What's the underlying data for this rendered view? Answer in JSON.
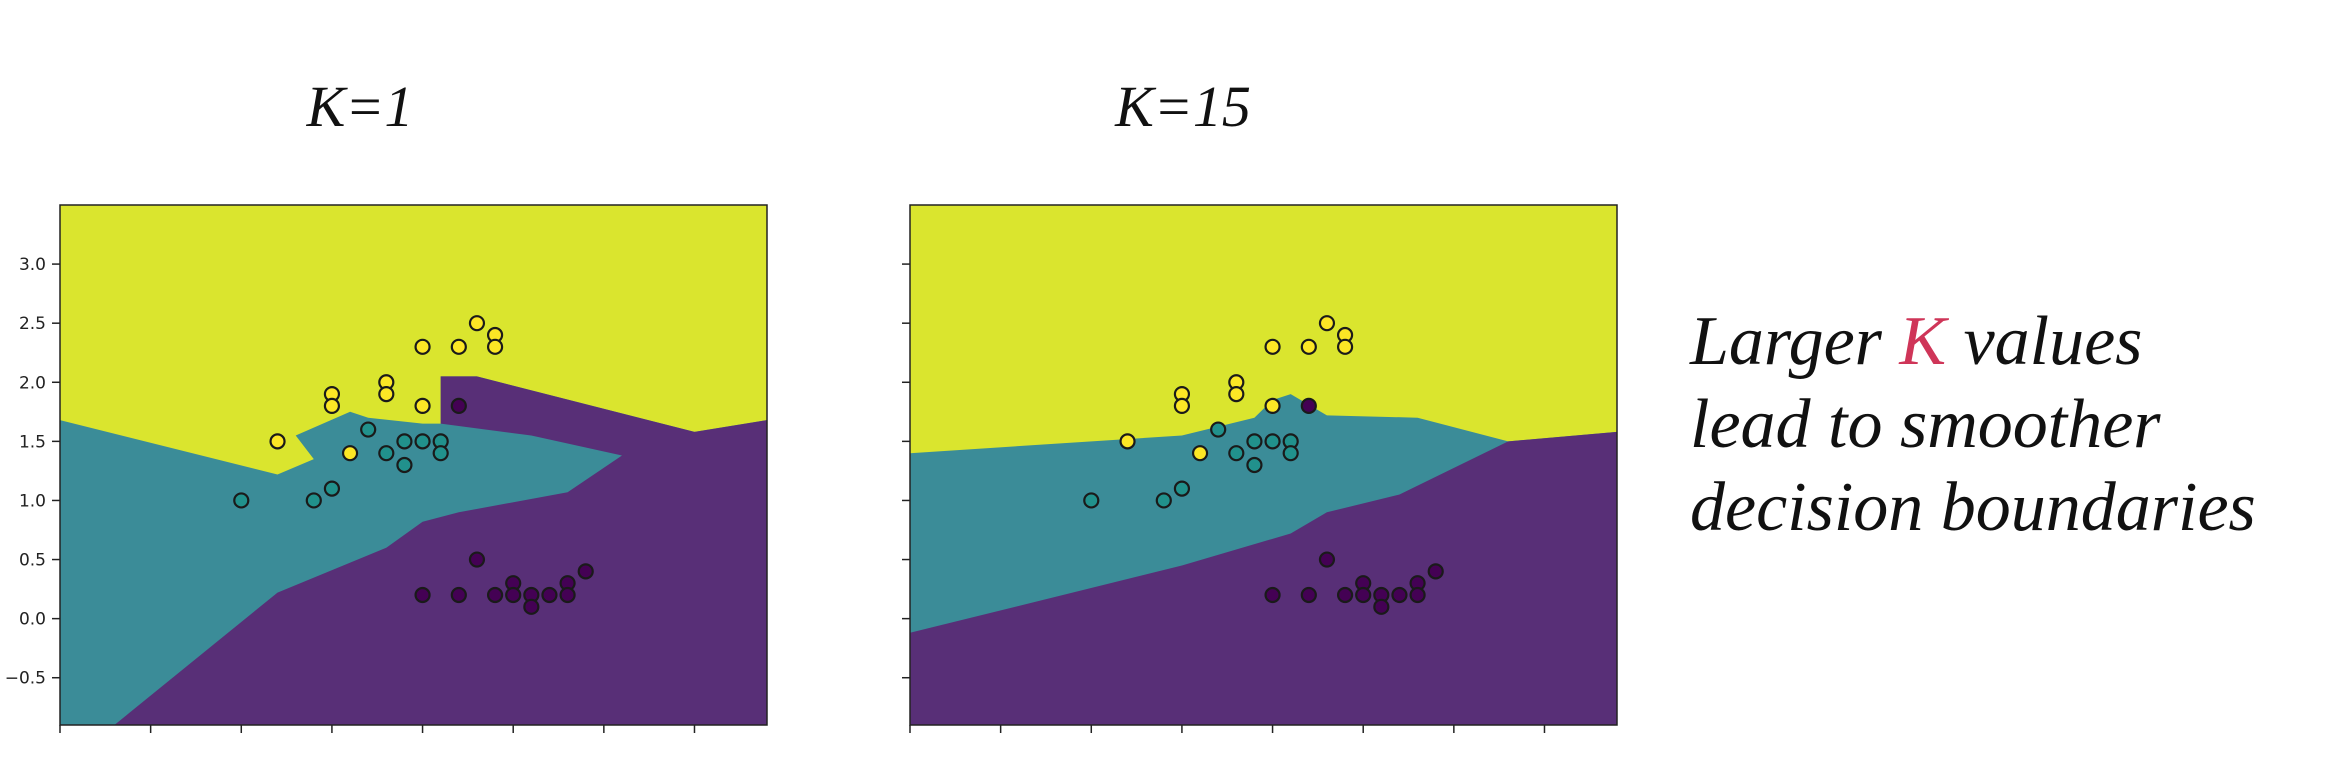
{
  "colors": {
    "region_class0": "#582f77",
    "region_class1": "#3b8c98",
    "region_class2": "#dae52e",
    "point_class0": "#440154",
    "point_class1": "#21918c",
    "point_class2": "#fde725",
    "highlight": "#cf3558"
  },
  "caption": {
    "line1_prefix": "Larger ",
    "line1_k": "K",
    "line1_suffix": " values",
    "line2": "lead to smoother",
    "line3": "decision boundaries"
  },
  "chart_data": [
    {
      "type": "scatter",
      "title": "K=1",
      "xlabel": "",
      "ylabel": "",
      "xlim": [
        1.0,
        4.9
      ],
      "ylim": [
        -0.9,
        3.5
      ],
      "yticks": [
        "3.0",
        "2.5",
        "2.0",
        "1.5",
        "1.0",
        "0.5",
        "0.0",
        "−0.5"
      ],
      "grid": false,
      "points": [
        {
          "x": 2.0,
          "y": 1.0,
          "class": 1
        },
        {
          "x": 2.4,
          "y": 1.0,
          "class": 1
        },
        {
          "x": 2.5,
          "y": 1.1,
          "class": 1
        },
        {
          "x": 2.7,
          "y": 1.6,
          "class": 1
        },
        {
          "x": 2.8,
          "y": 1.4,
          "class": 1
        },
        {
          "x": 2.9,
          "y": 1.5,
          "class": 1
        },
        {
          "x": 2.9,
          "y": 1.3,
          "class": 1
        },
        {
          "x": 3.0,
          "y": 1.5,
          "class": 1
        },
        {
          "x": 3.1,
          "y": 1.5,
          "class": 1
        },
        {
          "x": 3.1,
          "y": 1.4,
          "class": 1
        },
        {
          "x": 2.2,
          "y": 1.5,
          "class": 2
        },
        {
          "x": 2.5,
          "y": 1.9,
          "class": 2
        },
        {
          "x": 2.5,
          "y": 1.8,
          "class": 2
        },
        {
          "x": 2.6,
          "y": 1.4,
          "class": 2
        },
        {
          "x": 2.8,
          "y": 2.0,
          "class": 2
        },
        {
          "x": 2.8,
          "y": 1.9,
          "class": 2
        },
        {
          "x": 3.0,
          "y": 2.3,
          "class": 2
        },
        {
          "x": 3.0,
          "y": 1.8,
          "class": 2
        },
        {
          "x": 3.2,
          "y": 2.3,
          "class": 2
        },
        {
          "x": 3.3,
          "y": 2.5,
          "class": 2
        },
        {
          "x": 3.4,
          "y": 2.4,
          "class": 2
        },
        {
          "x": 3.4,
          "y": 2.3,
          "class": 2
        },
        {
          "x": 3.2,
          "y": 1.8,
          "class": 0
        },
        {
          "x": 3.3,
          "y": 0.5,
          "class": 0
        },
        {
          "x": 3.0,
          "y": 0.2,
          "class": 0
        },
        {
          "x": 3.2,
          "y": 0.2,
          "class": 0
        },
        {
          "x": 3.4,
          "y": 0.2,
          "class": 0
        },
        {
          "x": 3.5,
          "y": 0.3,
          "class": 0
        },
        {
          "x": 3.5,
          "y": 0.2,
          "class": 0
        },
        {
          "x": 3.6,
          "y": 0.2,
          "class": 0
        },
        {
          "x": 3.6,
          "y": 0.1,
          "class": 0
        },
        {
          "x": 3.7,
          "y": 0.2,
          "class": 0
        },
        {
          "x": 3.8,
          "y": 0.3,
          "class": 0
        },
        {
          "x": 3.8,
          "y": 0.2,
          "class": 0
        },
        {
          "x": 3.9,
          "y": 0.4,
          "class": 0
        }
      ],
      "regions": {
        "class1": [
          [
            1.0,
            1.68
          ],
          [
            2.2,
            1.22
          ],
          [
            2.4,
            1.35
          ],
          [
            2.3,
            1.55
          ],
          [
            2.6,
            1.75
          ],
          [
            2.7,
            1.7
          ],
          [
            3.0,
            1.65
          ],
          [
            3.1,
            1.65
          ],
          [
            3.1,
            2.05
          ],
          [
            3.3,
            2.05
          ],
          [
            4.5,
            1.58
          ],
          [
            4.9,
            1.68
          ],
          [
            4.9,
            -0.9
          ],
          [
            1.0,
            -0.9
          ]
        ],
        "class0": [
          [
            1.3,
            -0.9
          ],
          [
            2.2,
            0.22
          ],
          [
            2.8,
            0.6
          ],
          [
            3.0,
            0.82
          ],
          [
            3.2,
            0.9
          ],
          [
            3.8,
            1.07
          ],
          [
            4.1,
            1.38
          ],
          [
            3.6,
            1.55
          ],
          [
            3.1,
            1.65
          ],
          [
            3.1,
            2.05
          ],
          [
            3.3,
            2.05
          ],
          [
            4.5,
            1.58
          ],
          [
            4.9,
            1.68
          ],
          [
            4.9,
            -0.9
          ]
        ]
      }
    },
    {
      "type": "scatter",
      "title": "K=15",
      "xlabel": "",
      "ylabel": "",
      "xlim": [
        1.0,
        4.9
      ],
      "ylim": [
        -0.9,
        3.5
      ],
      "grid": false,
      "points": [
        {
          "x": 2.0,
          "y": 1.0,
          "class": 1
        },
        {
          "x": 2.4,
          "y": 1.0,
          "class": 1
        },
        {
          "x": 2.5,
          "y": 1.1,
          "class": 1
        },
        {
          "x": 2.7,
          "y": 1.6,
          "class": 1
        },
        {
          "x": 2.8,
          "y": 1.4,
          "class": 1
        },
        {
          "x": 2.9,
          "y": 1.5,
          "class": 1
        },
        {
          "x": 2.9,
          "y": 1.3,
          "class": 1
        },
        {
          "x": 3.0,
          "y": 1.5,
          "class": 1
        },
        {
          "x": 3.1,
          "y": 1.5,
          "class": 1
        },
        {
          "x": 3.1,
          "y": 1.4,
          "class": 1
        },
        {
          "x": 2.2,
          "y": 1.5,
          "class": 2
        },
        {
          "x": 2.5,
          "y": 1.9,
          "class": 2
        },
        {
          "x": 2.5,
          "y": 1.8,
          "class": 2
        },
        {
          "x": 2.6,
          "y": 1.4,
          "class": 2
        },
        {
          "x": 2.8,
          "y": 2.0,
          "class": 2
        },
        {
          "x": 2.8,
          "y": 1.9,
          "class": 2
        },
        {
          "x": 3.0,
          "y": 2.3,
          "class": 2
        },
        {
          "x": 3.0,
          "y": 1.8,
          "class": 2
        },
        {
          "x": 3.2,
          "y": 2.3,
          "class": 2
        },
        {
          "x": 3.3,
          "y": 2.5,
          "class": 2
        },
        {
          "x": 3.4,
          "y": 2.4,
          "class": 2
        },
        {
          "x": 3.4,
          "y": 2.3,
          "class": 2
        },
        {
          "x": 3.2,
          "y": 1.8,
          "class": 0
        },
        {
          "x": 3.3,
          "y": 0.5,
          "class": 0
        },
        {
          "x": 3.0,
          "y": 0.2,
          "class": 0
        },
        {
          "x": 3.2,
          "y": 0.2,
          "class": 0
        },
        {
          "x": 3.4,
          "y": 0.2,
          "class": 0
        },
        {
          "x": 3.5,
          "y": 0.3,
          "class": 0
        },
        {
          "x": 3.5,
          "y": 0.2,
          "class": 0
        },
        {
          "x": 3.6,
          "y": 0.2,
          "class": 0
        },
        {
          "x": 3.6,
          "y": 0.1,
          "class": 0
        },
        {
          "x": 3.7,
          "y": 0.2,
          "class": 0
        },
        {
          "x": 3.8,
          "y": 0.3,
          "class": 0
        },
        {
          "x": 3.8,
          "y": 0.2,
          "class": 0
        },
        {
          "x": 3.9,
          "y": 0.4,
          "class": 0
        }
      ],
      "regions": {
        "class1": [
          [
            1.0,
            1.4
          ],
          [
            2.5,
            1.55
          ],
          [
            2.9,
            1.7
          ],
          [
            3.0,
            1.85
          ],
          [
            3.1,
            1.9
          ],
          [
            3.3,
            1.72
          ],
          [
            3.8,
            1.7
          ],
          [
            4.3,
            1.5
          ],
          [
            4.9,
            1.58
          ],
          [
            4.9,
            -0.9
          ],
          [
            1.0,
            -0.9
          ]
        ],
        "class0": [
          [
            1.0,
            -0.12
          ],
          [
            2.5,
            0.45
          ],
          [
            3.1,
            0.72
          ],
          [
            3.3,
            0.9
          ],
          [
            3.7,
            1.05
          ],
          [
            4.3,
            1.5
          ],
          [
            4.9,
            1.58
          ],
          [
            4.9,
            -0.9
          ],
          [
            1.0,
            -0.9
          ]
        ]
      }
    }
  ]
}
